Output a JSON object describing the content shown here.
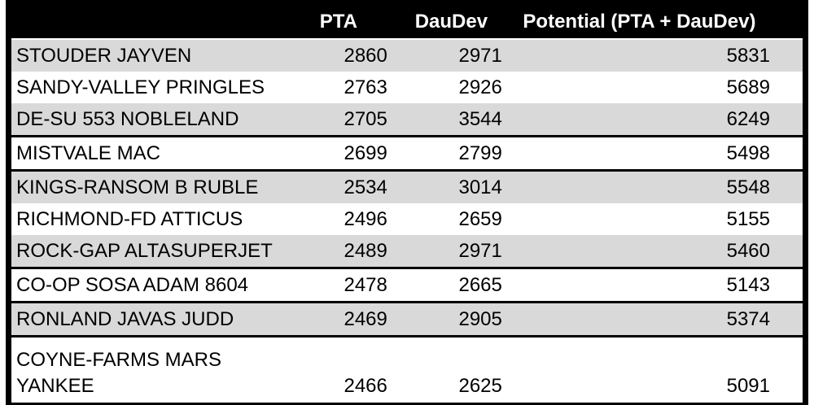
{
  "table": {
    "columns": [
      {
        "key": "name",
        "label": ""
      },
      {
        "key": "pta",
        "label": "PTA"
      },
      {
        "key": "daudev",
        "label": "DauDev"
      },
      {
        "key": "potential",
        "label": "Potential (PTA + DauDev)"
      }
    ],
    "rows": [
      {
        "name": "STOUDER JAYVEN",
        "pta": "2860",
        "daudev": "2971",
        "potential": "5831",
        "shaded": true,
        "group_end": false,
        "tall": false
      },
      {
        "name": "SANDY-VALLEY PRINGLES",
        "pta": "2763",
        "daudev": "2926",
        "potential": "5689",
        "shaded": false,
        "group_end": false,
        "tall": false
      },
      {
        "name": "DE-SU 553 NOBLELAND",
        "pta": "2705",
        "daudev": "3544",
        "potential": "6249",
        "shaded": true,
        "group_end": true,
        "tall": false
      },
      {
        "name": "MISTVALE MAC",
        "pta": "2699",
        "daudev": "2799",
        "potential": "5498",
        "shaded": false,
        "group_end": true,
        "tall": false
      },
      {
        "name": "KINGS-RANSOM B RUBLE",
        "pta": "2534",
        "daudev": "3014",
        "potential": "5548",
        "shaded": true,
        "group_end": false,
        "tall": false
      },
      {
        "name": "RICHMOND-FD ATTICUS",
        "pta": "2496",
        "daudev": "2659",
        "potential": "5155",
        "shaded": false,
        "group_end": false,
        "tall": false
      },
      {
        "name": "ROCK-GAP ALTASUPERJET",
        "pta": "2489",
        "daudev": "2971",
        "potential": "5460",
        "shaded": true,
        "group_end": true,
        "tall": false
      },
      {
        "name": "CO-OP SOSA ADAM 8604",
        "pta": "2478",
        "daudev": "2665",
        "potential": "5143",
        "shaded": false,
        "group_end": true,
        "tall": false
      },
      {
        "name": "RONLAND JAVAS JUDD",
        "pta": "2469",
        "daudev": "2905",
        "potential": "5374",
        "shaded": true,
        "group_end": true,
        "tall": false
      },
      {
        "name": "COYNE-FARMS MARS YANKEE",
        "pta": "2466",
        "daudev": "2625",
        "potential": "5091",
        "shaded": false,
        "group_end": false,
        "tall": true
      }
    ],
    "colors": {
      "header_bg": "#000000",
      "header_text": "#ffffff",
      "shaded_row_bg": "#d9d9d9",
      "plain_row_bg": "#ffffff",
      "body_text": "#000000",
      "border": "#000000"
    }
  }
}
